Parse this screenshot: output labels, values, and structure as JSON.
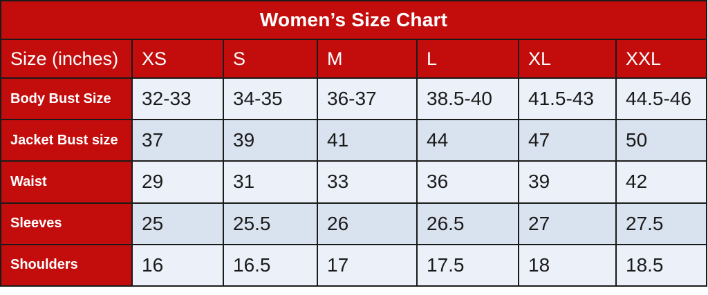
{
  "chart_data": {
    "type": "table",
    "title": "Women’s Size Chart",
    "columns": [
      "Size (inches)",
      "XS",
      "S",
      "M",
      "L",
      "XL",
      "XXL"
    ],
    "rows": [
      {
        "label": "Body Bust Size",
        "values": [
          "32-33",
          "34-35",
          "36-37",
          "38.5-40",
          "41.5-43",
          "44.5-46"
        ]
      },
      {
        "label": "Jacket Bust size",
        "values": [
          "37",
          "39",
          "41",
          "44",
          "47",
          "50"
        ]
      },
      {
        "label": "Waist",
        "values": [
          "29",
          "31",
          "33",
          "36",
          "39",
          "42"
        ]
      },
      {
        "label": "Sleeves",
        "values": [
          "25",
          "25.5",
          "26",
          "26.5",
          "27",
          "27.5"
        ]
      },
      {
        "label": "Shoulders",
        "values": [
          "16",
          "16.5",
          "17",
          "17.5",
          "18",
          "18.5"
        ]
      }
    ]
  },
  "colors": {
    "red": "#c30d0d",
    "header_text": "#ffffff",
    "cell_text": "#1a1a1a",
    "row_light": "#ecf0f8",
    "row_shade": "#d9e2ef",
    "border": "#1a1a1a",
    "page_background": "#ffffff"
  }
}
